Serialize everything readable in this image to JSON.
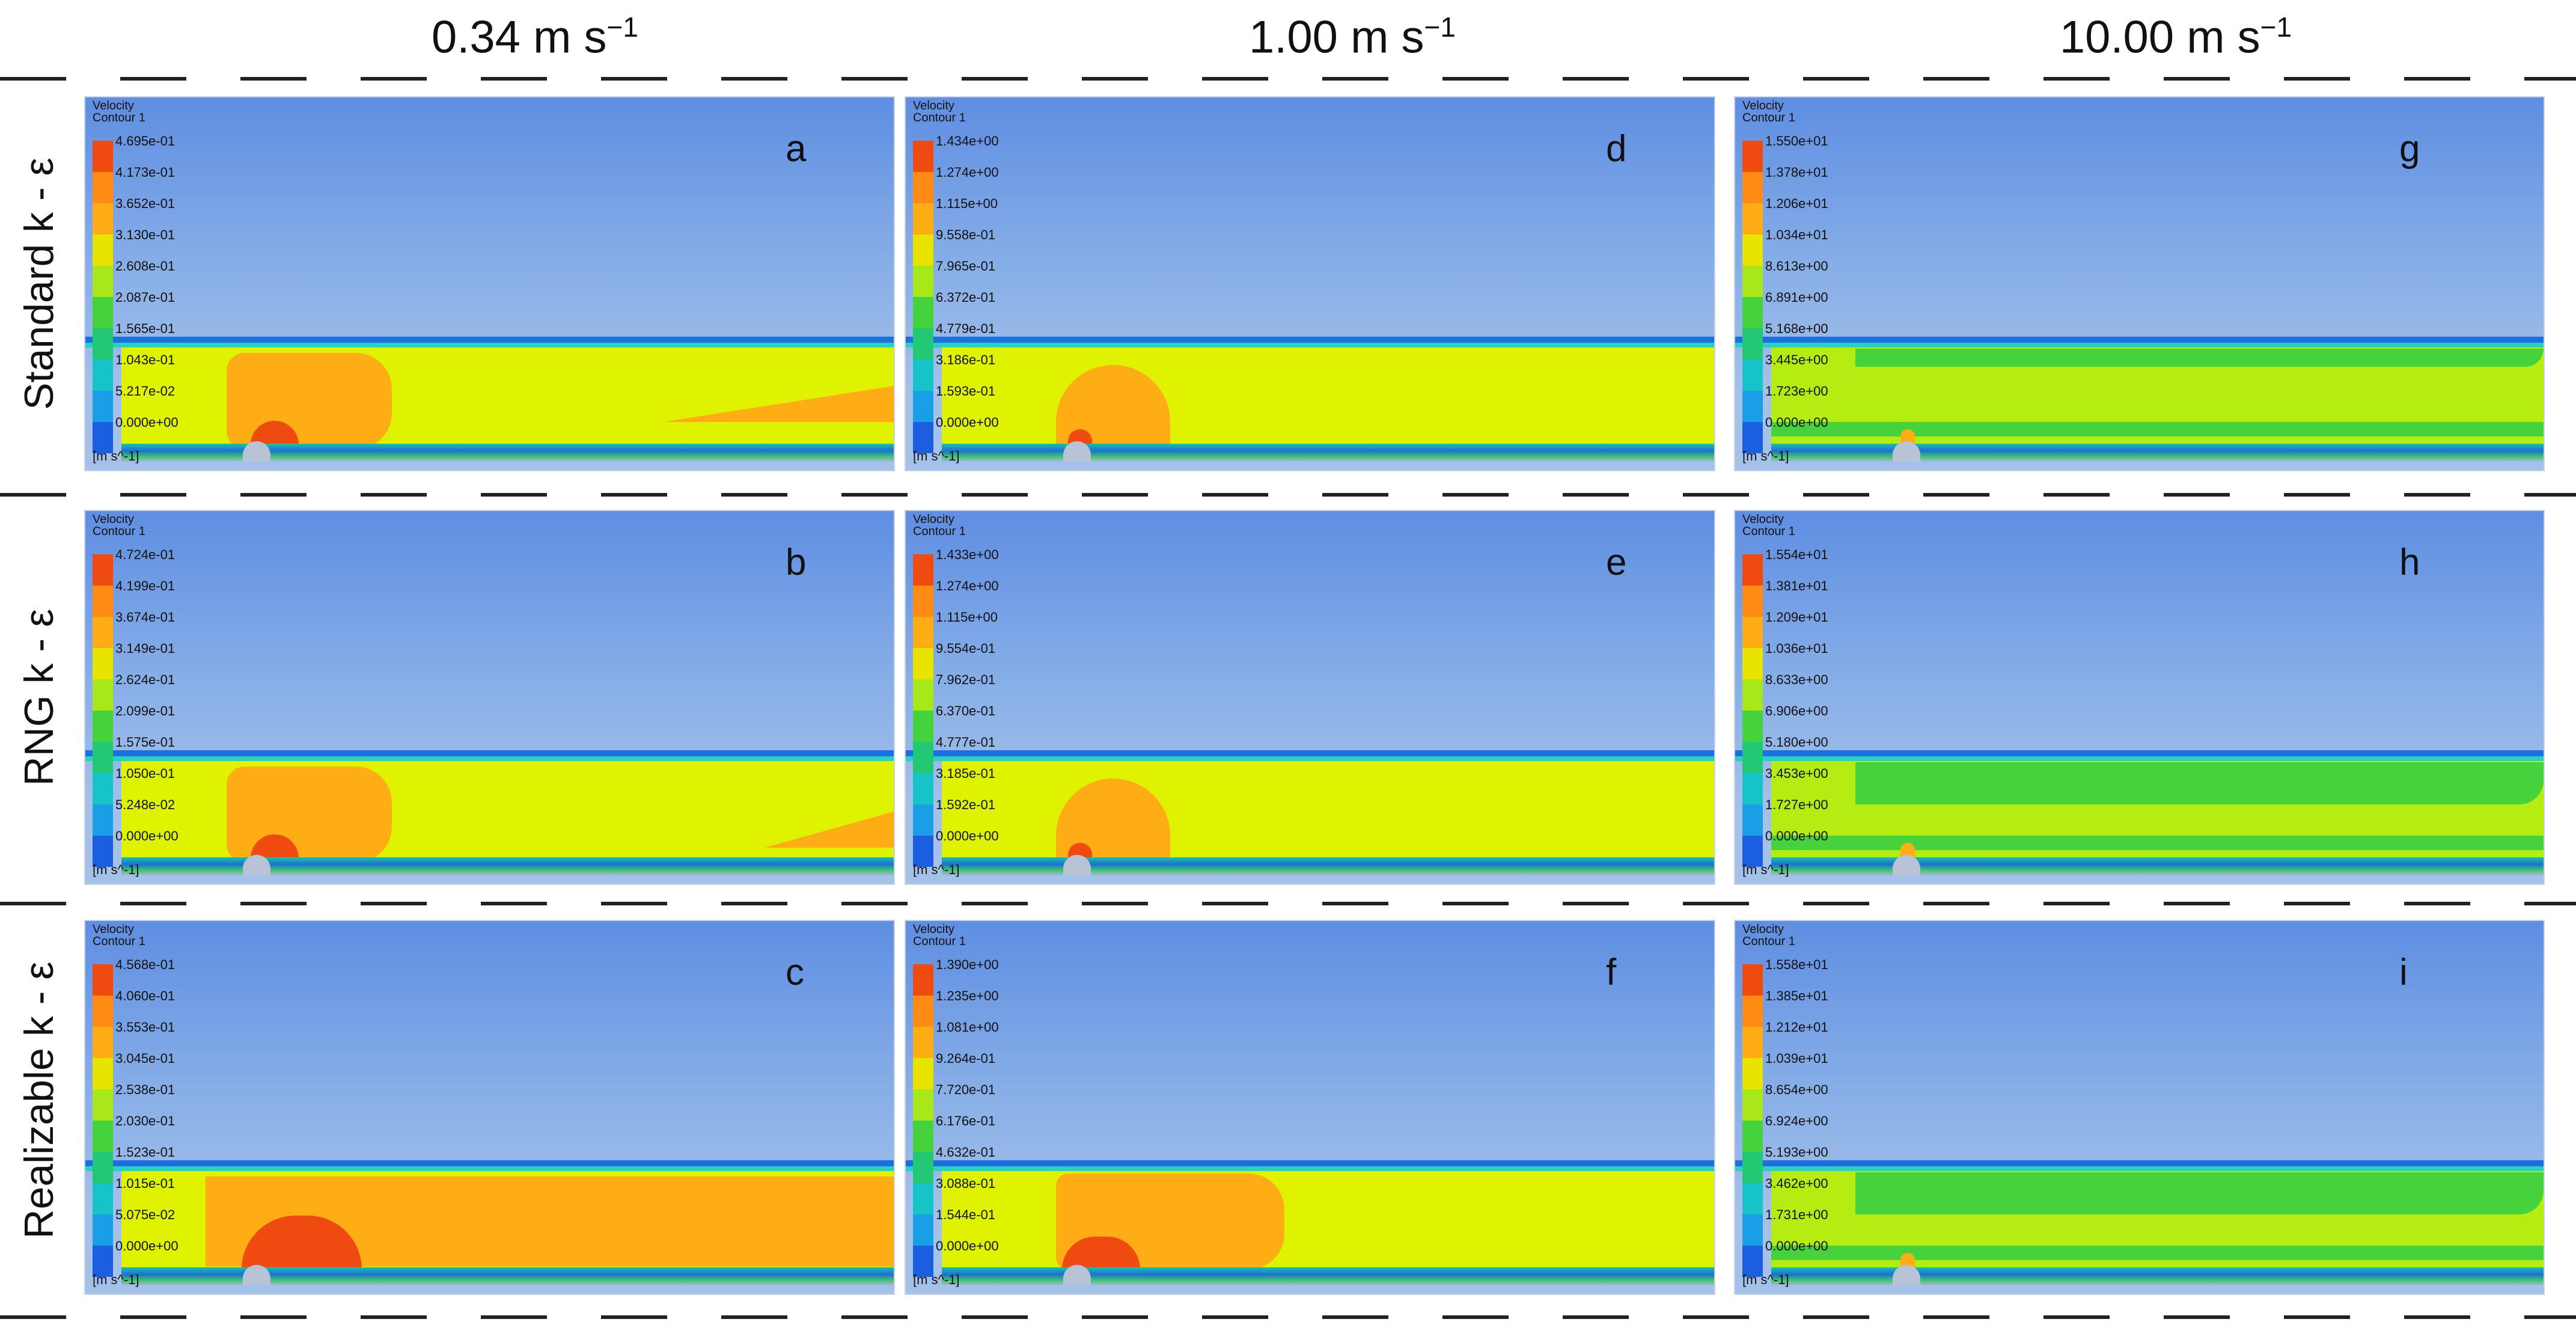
{
  "columns": [
    {
      "speed": "0.34 m s",
      "exp": "−1"
    },
    {
      "speed": "1.00 m s",
      "exp": "−1"
    },
    {
      "speed": "10.00 m s",
      "exp": "−1"
    }
  ],
  "rows": [
    "Standard k - ε",
    "RNG k - ε",
    "Realizable  k - ε"
  ],
  "legend_title_line1": "Velocity",
  "legend_title_line2": "Contour 1",
  "unit_label": "[m s^-1]",
  "panels": [
    {
      "letter": "a",
      "ticks": [
        "4.695e-01",
        "4.173e-01",
        "3.652e-01",
        "3.130e-01",
        "2.608e-01",
        "2.087e-01",
        "1.565e-01",
        "1.043e-01",
        "5.217e-02",
        "0.000e+00"
      ]
    },
    {
      "letter": "d",
      "ticks": [
        "1.434e+00",
        "1.274e+00",
        "1.115e+00",
        "9.558e-01",
        "7.965e-01",
        "6.372e-01",
        "4.779e-01",
        "3.186e-01",
        "1.593e-01",
        "0.000e+00"
      ]
    },
    {
      "letter": "g",
      "ticks": [
        "1.550e+01",
        "1.378e+01",
        "1.206e+01",
        "1.034e+01",
        "8.613e+00",
        "6.891e+00",
        "5.168e+00",
        "3.445e+00",
        "1.723e+00",
        "0.000e+00"
      ]
    },
    {
      "letter": "b",
      "ticks": [
        "4.724e-01",
        "4.199e-01",
        "3.674e-01",
        "3.149e-01",
        "2.624e-01",
        "2.099e-01",
        "1.575e-01",
        "1.050e-01",
        "5.248e-02",
        "0.000e+00"
      ]
    },
    {
      "letter": "e",
      "ticks": [
        "1.433e+00",
        "1.274e+00",
        "1.115e+00",
        "9.554e-01",
        "7.962e-01",
        "6.370e-01",
        "4.777e-01",
        "3.185e-01",
        "1.592e-01",
        "0.000e+00"
      ]
    },
    {
      "letter": "h",
      "ticks": [
        "1.554e+01",
        "1.381e+01",
        "1.209e+01",
        "1.036e+01",
        "8.633e+00",
        "6.906e+00",
        "5.180e+00",
        "3.453e+00",
        "1.727e+00",
        "0.000e+00"
      ]
    },
    {
      "letter": "c",
      "ticks": [
        "4.568e-01",
        "4.060e-01",
        "3.553e-01",
        "3.045e-01",
        "2.538e-01",
        "2.030e-01",
        "1.523e-01",
        "1.015e-01",
        "5.075e-02",
        "0.000e+00"
      ]
    },
    {
      "letter": "f",
      "ticks": [
        "1.390e+00",
        "1.235e+00",
        "1.081e+00",
        "9.264e-01",
        "7.720e-01",
        "6.176e-01",
        "4.632e-01",
        "3.088e-01",
        "1.544e-01",
        "0.000e+00"
      ]
    },
    {
      "letter": "i",
      "ticks": [
        "1.558e+01",
        "1.385e+01",
        "1.212e+01",
        "1.039e+01",
        "8.654e+00",
        "6.924e+00",
        "5.193e+00",
        "3.462e+00",
        "1.731e+00",
        "0.000e+00"
      ]
    }
  ],
  "colors": {
    "flow_low_speed": "#dff200",
    "flow_high_speed": "#b5ec12",
    "orange": "#ffad14",
    "red": "#ef4a10",
    "green": "#45d23c"
  }
}
